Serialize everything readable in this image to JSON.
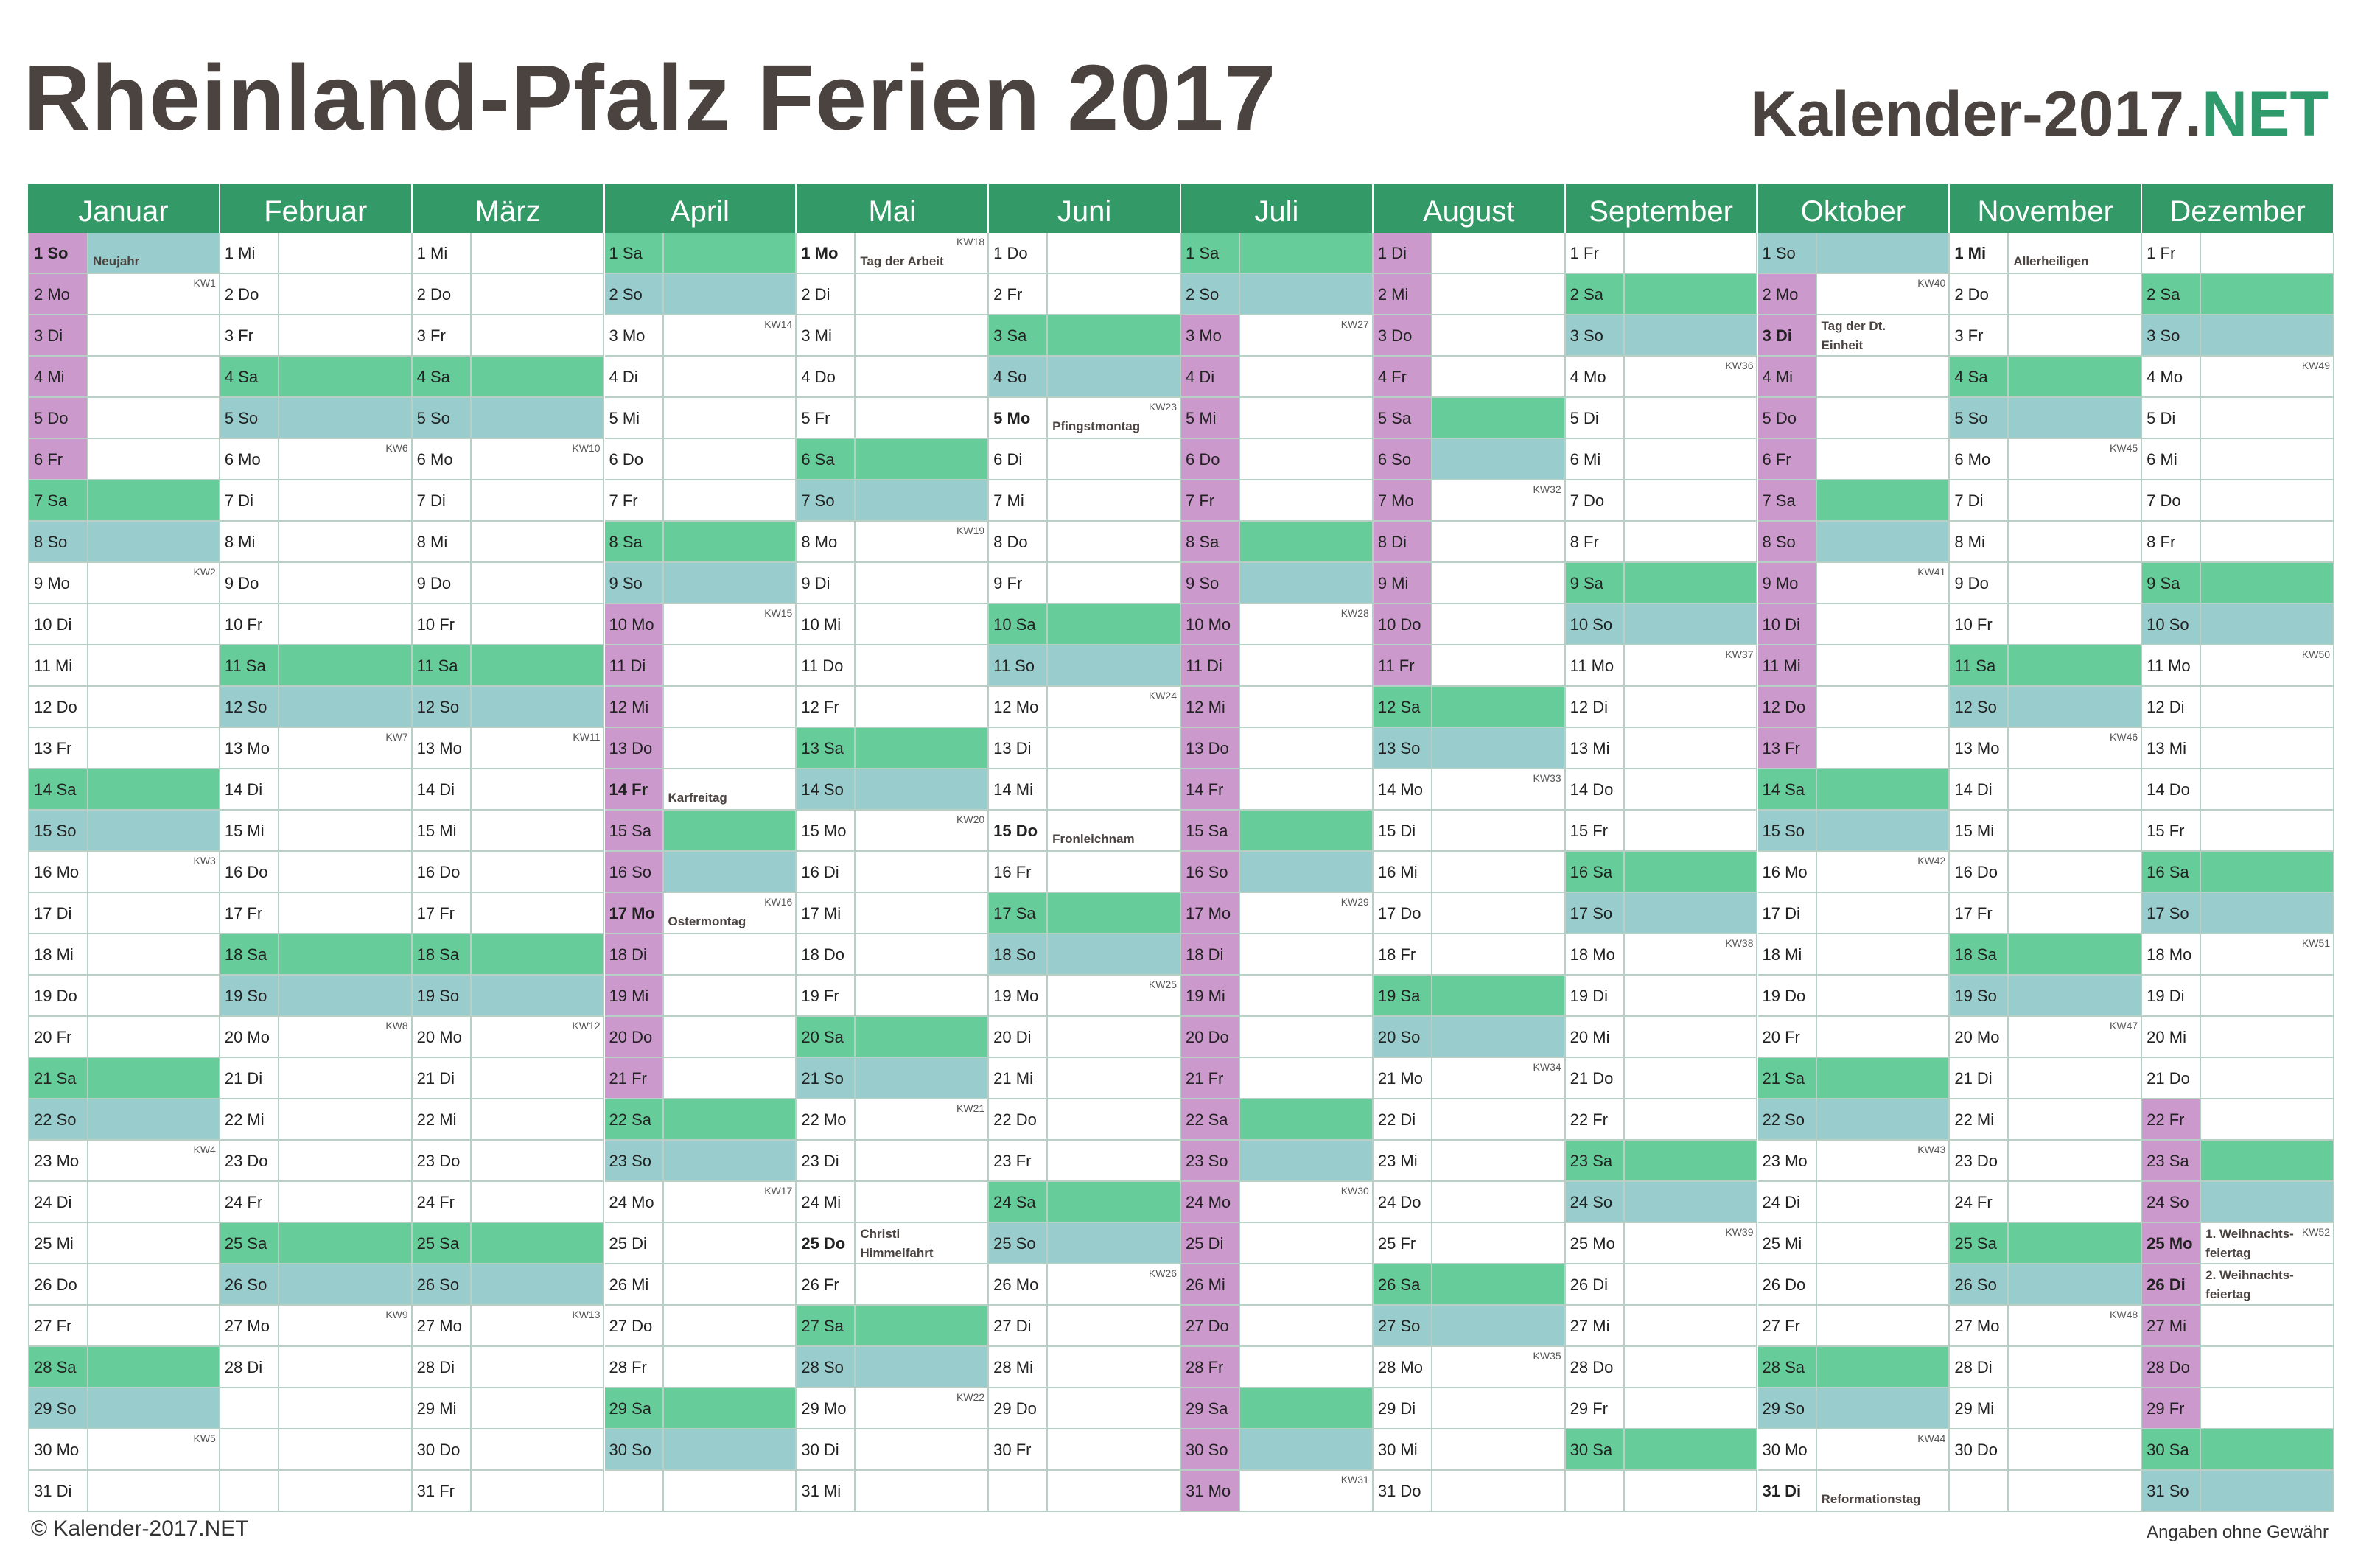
{
  "title": "Rheinland-Pfalz Ferien 2017",
  "brand": {
    "main": "Kalender-2017.",
    "accent": "NET"
  },
  "footer": {
    "copyright": "© Kalender-2017.NET",
    "disclaimer": "Angaben ohne Gewähr"
  },
  "colors": {
    "header": "#339966",
    "saturday": "#66cc99",
    "sunday": "#99cccc",
    "vacation": "#cc99cc",
    "title": "#4a433f"
  },
  "year": 2017,
  "weekdays": [
    "So",
    "Mo",
    "Di",
    "Mi",
    "Do",
    "Fr",
    "Sa"
  ],
  "months": [
    {
      "name": "Januar",
      "days": 31
    },
    {
      "name": "Februar",
      "days": 28
    },
    {
      "name": "März",
      "days": 31
    },
    {
      "name": "April",
      "days": 30
    },
    {
      "name": "Mai",
      "days": 31
    },
    {
      "name": "Juni",
      "days": 30
    },
    {
      "name": "Juli",
      "days": 31
    },
    {
      "name": "August",
      "days": 31
    },
    {
      "name": "September",
      "days": 30
    },
    {
      "name": "Oktober",
      "days": 31
    },
    {
      "name": "November",
      "days": 30
    },
    {
      "name": "Dezember",
      "days": 31
    }
  ],
  "holidays": [
    {
      "month": 1,
      "day": 1,
      "name": "Neujahr"
    },
    {
      "month": 4,
      "day": 14,
      "name": "Karfreitag"
    },
    {
      "month": 4,
      "day": 17,
      "name": "Ostermontag"
    },
    {
      "month": 5,
      "day": 1,
      "name": "Tag der Arbeit"
    },
    {
      "month": 5,
      "day": 25,
      "name": "Christi\nHimmelfahrt"
    },
    {
      "month": 6,
      "day": 5,
      "name": "Pfingstmontag"
    },
    {
      "month": 6,
      "day": 15,
      "name": "Fronleichnam"
    },
    {
      "month": 10,
      "day": 3,
      "name": "Tag der Dt.\nEinheit"
    },
    {
      "month": 10,
      "day": 31,
      "name": "Reformationstag"
    },
    {
      "month": 11,
      "day": 1,
      "name": "Allerheiligen"
    },
    {
      "month": 12,
      "day": 25,
      "name": "1. Weihnachts-\nfeiertag"
    },
    {
      "month": 12,
      "day": 26,
      "name": "2. Weihnachts-\nfeiertag"
    }
  ],
  "vacations": [
    {
      "month": 1,
      "from": 1,
      "to": 6
    },
    {
      "month": 4,
      "from": 10,
      "to": 21
    },
    {
      "month": 7,
      "from": 3,
      "to": 31
    },
    {
      "month": 8,
      "from": 1,
      "to": 11
    },
    {
      "month": 10,
      "from": 2,
      "to": 13
    },
    {
      "month": 12,
      "from": 22,
      "to": 29
    }
  ]
}
